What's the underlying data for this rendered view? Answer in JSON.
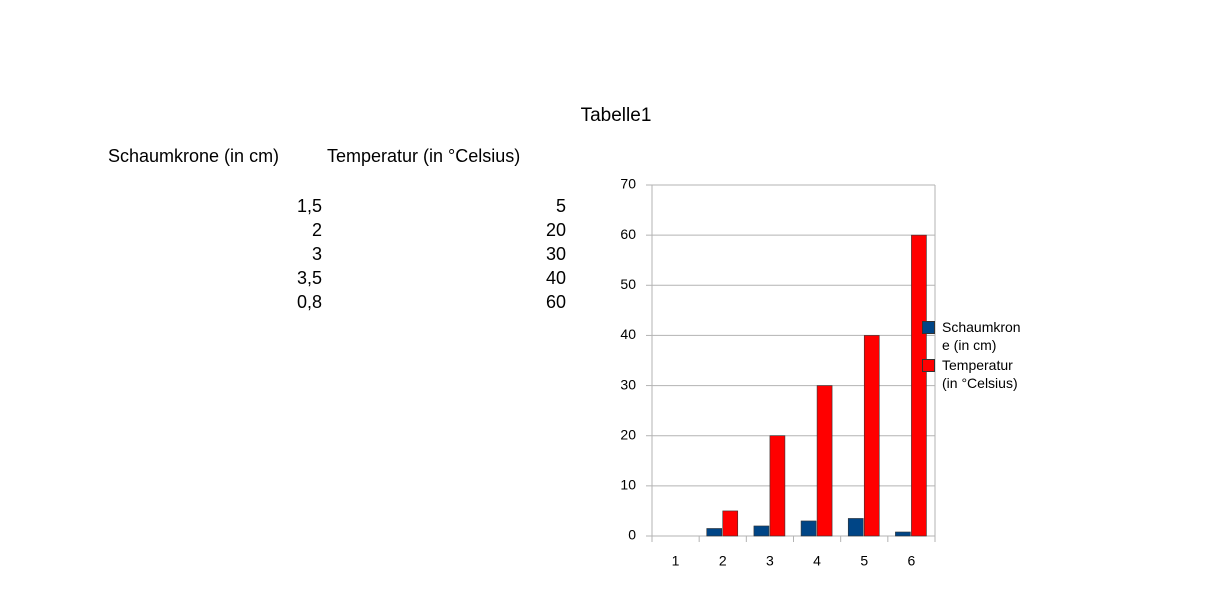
{
  "sheet": {
    "title": "Tabelle1",
    "headers": [
      "Schaumkrone (in cm)",
      "Temperatur (in °Celsius)"
    ],
    "rows": [
      [
        "1,5",
        "5"
      ],
      [
        "2",
        "20"
      ],
      [
        "3",
        "30"
      ],
      [
        "3,5",
        "40"
      ],
      [
        "0,8",
        "60"
      ]
    ]
  },
  "chart_data": {
    "type": "bar",
    "categories": [
      "1",
      "2",
      "3",
      "4",
      "5",
      "6"
    ],
    "series": [
      {
        "name": "Schaumkrone (in cm)",
        "color": "#004586",
        "values": [
          null,
          1.5,
          2,
          3,
          3.5,
          0.8
        ]
      },
      {
        "name": "Temperatur (in °Celsius)",
        "color": "#ff0000",
        "values": [
          null,
          5,
          20,
          30,
          40,
          60
        ]
      }
    ],
    "ylim": [
      0,
      70
    ],
    "yticks": [
      0,
      10,
      20,
      30,
      40,
      50,
      60,
      70
    ],
    "grid": true,
    "legend": "right"
  }
}
